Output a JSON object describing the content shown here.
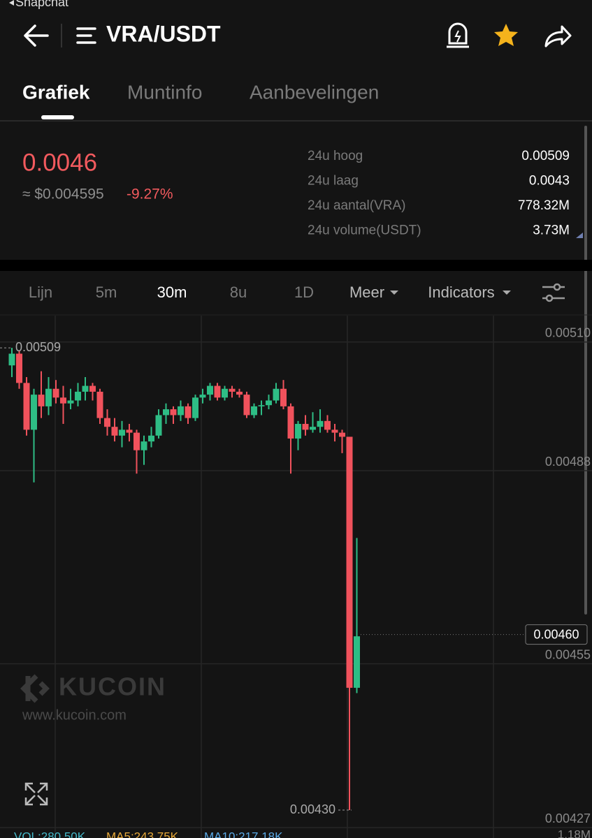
{
  "status_bar": {
    "app": "Snapchat"
  },
  "header": {
    "title": "VRA/USDT"
  },
  "tabs": [
    "Grafiek",
    "Muntinfo",
    "Aanbevelingen"
  ],
  "ticker": {
    "price": "0.0046",
    "usd_price": "≈ $0.004595",
    "change": "-9.27%",
    "stats": [
      {
        "label": "24u hoog",
        "value": "0.00509"
      },
      {
        "label": "24u laag",
        "value": "0.0043"
      },
      {
        "label": "24u aantal(VRA)",
        "value": "778.32M"
      },
      {
        "label": "24u volume(USDT)",
        "value": "3.73M"
      }
    ]
  },
  "timeframes": [
    "Lijn",
    "5m",
    "30m",
    "8u",
    "1D",
    "Meer",
    "Indicators"
  ],
  "watermark": {
    "brand": "KUCOIN",
    "url": "www.kucoin.com"
  },
  "chart_data": {
    "type": "candlestick",
    "ylim": [
      0.004269,
      0.005145
    ],
    "yticks": [
      {
        "value": 0.0051,
        "label": "0.00510"
      },
      {
        "value": 0.00488,
        "label": "0.00488"
      },
      {
        "value": 0.00455,
        "label": "0.00455"
      },
      {
        "value": 0.00427,
        "label": "0.00427"
      }
    ],
    "up_color": "#2ebd85",
    "down_color": "#f0525c",
    "high_label": {
      "value": 0.00509,
      "label": "0.00509"
    },
    "low_label": {
      "value": 0.0043,
      "label": "0.00430"
    },
    "last_price": {
      "value": 0.0046,
      "label": "0.00460"
    },
    "candles": [
      {
        "open": 0.00506,
        "high": 0.00509,
        "low": 0.00504,
        "close": 0.00508
      },
      {
        "open": 0.00508,
        "high": 0.005085,
        "low": 0.00502,
        "close": 0.00503
      },
      {
        "open": 0.00503,
        "high": 0.00504,
        "low": 0.00494,
        "close": 0.00495
      },
      {
        "open": 0.00495,
        "high": 0.00502,
        "low": 0.00486,
        "close": 0.00501
      },
      {
        "open": 0.00501,
        "high": 0.00505,
        "low": 0.00497,
        "close": 0.00499
      },
      {
        "open": 0.00499,
        "high": 0.00504,
        "low": 0.004975,
        "close": 0.00502
      },
      {
        "open": 0.00502,
        "high": 0.005035,
        "low": 0.004995,
        "close": 0.005005
      },
      {
        "open": 0.005005,
        "high": 0.005025,
        "low": 0.00496,
        "close": 0.004995
      },
      {
        "open": 0.004995,
        "high": 0.00502,
        "low": 0.004985,
        "close": 0.005
      },
      {
        "open": 0.005,
        "high": 0.00503,
        "low": 0.00499,
        "close": 0.005015
      },
      {
        "open": 0.005015,
        "high": 0.00504,
        "low": 0.005,
        "close": 0.005025
      },
      {
        "open": 0.005025,
        "high": 0.00503,
        "low": 0.005,
        "close": 0.005015
      },
      {
        "open": 0.005015,
        "high": 0.00502,
        "low": 0.00496,
        "close": 0.00497
      },
      {
        "open": 0.00497,
        "high": 0.004985,
        "low": 0.00494,
        "close": 0.004955
      },
      {
        "open": 0.004955,
        "high": 0.00497,
        "low": 0.00493,
        "close": 0.00494
      },
      {
        "open": 0.00494,
        "high": 0.004965,
        "low": 0.00492,
        "close": 0.00495
      },
      {
        "open": 0.00495,
        "high": 0.00496,
        "low": 0.00493,
        "close": 0.004945
      },
      {
        "open": 0.004945,
        "high": 0.00495,
        "low": 0.004875,
        "close": 0.004915
      },
      {
        "open": 0.004915,
        "high": 0.00494,
        "low": 0.00489,
        "close": 0.00493
      },
      {
        "open": 0.00493,
        "high": 0.004955,
        "low": 0.00492,
        "close": 0.00494
      },
      {
        "open": 0.00494,
        "high": 0.004985,
        "low": 0.004935,
        "close": 0.004975
      },
      {
        "open": 0.004975,
        "high": 0.004995,
        "low": 0.00496,
        "close": 0.004985
      },
      {
        "open": 0.004985,
        "high": 0.00499,
        "low": 0.00496,
        "close": 0.004975
      },
      {
        "open": 0.004975,
        "high": 0.005,
        "low": 0.004965,
        "close": 0.00499
      },
      {
        "open": 0.00499,
        "high": 0.004995,
        "low": 0.00496,
        "close": 0.00497
      },
      {
        "open": 0.00497,
        "high": 0.00501,
        "low": 0.004965,
        "close": 0.005005
      },
      {
        "open": 0.005005,
        "high": 0.00502,
        "low": 0.004995,
        "close": 0.00501
      },
      {
        "open": 0.00501,
        "high": 0.00503,
        "low": 0.005,
        "close": 0.005025
      },
      {
        "open": 0.005025,
        "high": 0.00503,
        "low": 0.005,
        "close": 0.005005
      },
      {
        "open": 0.005005,
        "high": 0.005025,
        "low": 0.005,
        "close": 0.00502
      },
      {
        "open": 0.00502,
        "high": 0.005025,
        "low": 0.005005,
        "close": 0.005015
      },
      {
        "open": 0.005015,
        "high": 0.00502,
        "low": 0.005005,
        "close": 0.00501
      },
      {
        "open": 0.00501,
        "high": 0.005015,
        "low": 0.00497,
        "close": 0.004975
      },
      {
        "open": 0.004975,
        "high": 0.004995,
        "low": 0.00497,
        "close": 0.00499
      },
      {
        "open": 0.00499,
        "high": 0.005,
        "low": 0.004975,
        "close": 0.004992
      },
      {
        "open": 0.004992,
        "high": 0.00501,
        "low": 0.004985,
        "close": 0.005
      },
      {
        "open": 0.005,
        "high": 0.00503,
        "low": 0.004995,
        "close": 0.00502
      },
      {
        "open": 0.00502,
        "high": 0.005035,
        "low": 0.004985,
        "close": 0.00499
      },
      {
        "open": 0.00499,
        "high": 0.004995,
        "low": 0.004875,
        "close": 0.004935
      },
      {
        "open": 0.004935,
        "high": 0.004965,
        "low": 0.004915,
        "close": 0.00496
      },
      {
        "open": 0.00496,
        "high": 0.004975,
        "low": 0.00494,
        "close": 0.00495
      },
      {
        "open": 0.00495,
        "high": 0.00498,
        "low": 0.004945,
        "close": 0.004955
      },
      {
        "open": 0.004955,
        "high": 0.004985,
        "low": 0.004945,
        "close": 0.004965
      },
      {
        "open": 0.004965,
        "high": 0.004975,
        "low": 0.004945,
        "close": 0.00495
      },
      {
        "open": 0.00495,
        "high": 0.00496,
        "low": 0.00493,
        "close": 0.004945
      },
      {
        "open": 0.004945,
        "high": 0.00495,
        "low": 0.00491,
        "close": 0.004938
      },
      {
        "open": 0.004938,
        "high": 0.004938,
        "low": 0.0043,
        "close": 0.004509
      },
      {
        "open": 0.004509,
        "high": 0.004765,
        "low": 0.0045,
        "close": 0.004597
      }
    ]
  },
  "volume_legend": [
    "VOL:280.50K",
    "MA5:243.75K",
    "MA10:217.18K"
  ],
  "volume_max": "1.18M"
}
